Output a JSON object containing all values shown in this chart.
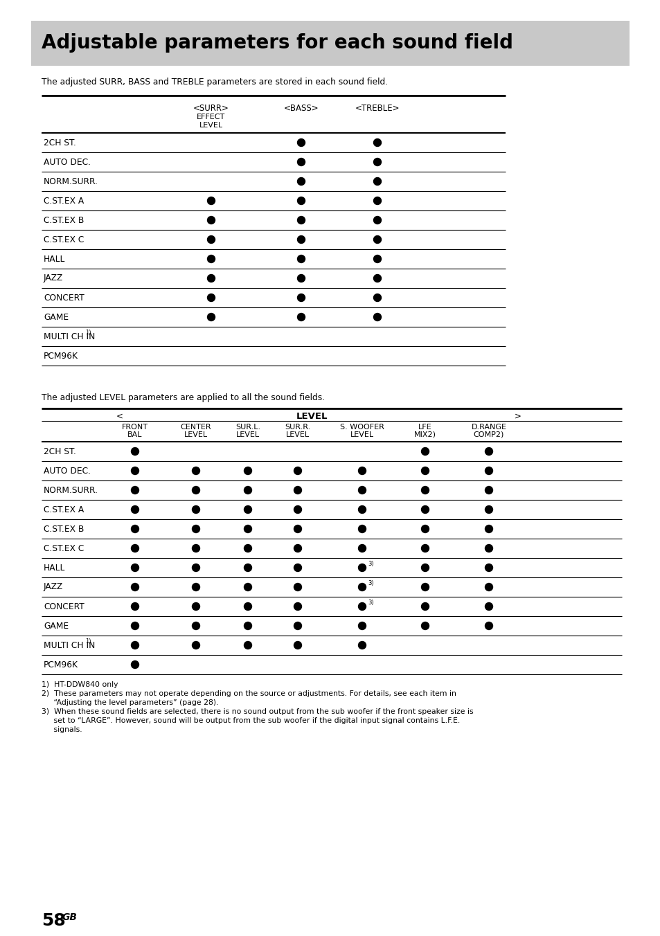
{
  "title": "Adjustable parameters for each sound field",
  "title_bg": "#c8c8c8",
  "page_bg": "#ffffff",
  "intro1": "The adjusted SURR, BASS and TREBLE parameters are stored in each sound field.",
  "intro2": "The adjusted LEVEL parameters are applied to all the sound fields.",
  "table1_col_headers": [
    "<SURR>",
    "<BASS>",
    "<TREBLE>"
  ],
  "table1_rows": [
    {
      "label": "2CH ST.",
      "surr": false,
      "bass": true,
      "treble": true
    },
    {
      "label": "AUTO DEC.",
      "surr": false,
      "bass": true,
      "treble": true
    },
    {
      "label": "NORM.SURR.",
      "surr": false,
      "bass": true,
      "treble": true
    },
    {
      "label": "C.ST.EX A",
      "surr": true,
      "bass": true,
      "treble": true
    },
    {
      "label": "C.ST.EX B",
      "surr": true,
      "bass": true,
      "treble": true
    },
    {
      "label": "C.ST.EX C",
      "surr": true,
      "bass": true,
      "treble": true
    },
    {
      "label": "HALL",
      "surr": true,
      "bass": true,
      "treble": true
    },
    {
      "label": "JAZZ",
      "surr": true,
      "bass": true,
      "treble": true
    },
    {
      "label": "CONCERT",
      "surr": true,
      "bass": true,
      "treble": true
    },
    {
      "label": "GAME",
      "surr": true,
      "bass": true,
      "treble": true
    },
    {
      "label": "MULTI CH IN",
      "sup": "1)",
      "surr": false,
      "bass": false,
      "treble": false
    },
    {
      "label": "PCM96K",
      "sup": "",
      "surr": false,
      "bass": false,
      "treble": false
    }
  ],
  "table2_col_headers": [
    [
      "FRONT",
      "BAL"
    ],
    [
      "CENTER",
      "LEVEL"
    ],
    [
      "SUR.L.",
      "LEVEL"
    ],
    [
      "SUR.R.",
      "LEVEL"
    ],
    [
      "S. WOOFER",
      "LEVEL"
    ],
    [
      "LFE",
      "MIX"
    ],
    [
      "D.RANGE",
      "COMP"
    ]
  ],
  "table2_col_sups": [
    "",
    "",
    "",
    "",
    "",
    "2)",
    "2)"
  ],
  "table2_rows": [
    {
      "label": "2CH ST.",
      "sup": "",
      "cols": [
        true,
        false,
        false,
        false,
        false,
        true,
        true
      ]
    },
    {
      "label": "AUTO DEC.",
      "sup": "",
      "cols": [
        true,
        true,
        true,
        true,
        true,
        true,
        true
      ]
    },
    {
      "label": "NORM.SURR.",
      "sup": "",
      "cols": [
        true,
        true,
        true,
        true,
        true,
        true,
        true
      ]
    },
    {
      "label": "C.ST.EX A",
      "sup": "",
      "cols": [
        true,
        true,
        true,
        true,
        true,
        true,
        true
      ]
    },
    {
      "label": "C.ST.EX B",
      "sup": "",
      "cols": [
        true,
        true,
        true,
        true,
        true,
        true,
        true
      ]
    },
    {
      "label": "C.ST.EX C",
      "sup": "",
      "cols": [
        true,
        true,
        true,
        true,
        true,
        true,
        true
      ]
    },
    {
      "label": "HALL",
      "sup": "",
      "cols": [
        true,
        true,
        true,
        true,
        "3)",
        true,
        true
      ]
    },
    {
      "label": "JAZZ",
      "sup": "",
      "cols": [
        true,
        true,
        true,
        true,
        "3)",
        true,
        true
      ]
    },
    {
      "label": "CONCERT",
      "sup": "",
      "cols": [
        true,
        true,
        true,
        true,
        "3)",
        true,
        true
      ]
    },
    {
      "label": "GAME",
      "sup": "",
      "cols": [
        true,
        true,
        true,
        true,
        true,
        true,
        true
      ]
    },
    {
      "label": "MULTI CH IN",
      "sup": "1)",
      "cols": [
        true,
        true,
        true,
        true,
        true,
        false,
        false
      ]
    },
    {
      "label": "PCM96K",
      "sup": "",
      "cols": [
        true,
        false,
        false,
        false,
        false,
        false,
        false
      ]
    }
  ],
  "footnote1": "1)  HT-DDW840 only",
  "footnote2a": "2)  These parameters may not operate depending on the source or adjustments. For details, see each item in",
  "footnote2b": "     “Adjusting the level parameters” (page 28).",
  "footnote3a": "3)  When these sound fields are selected, there is no sound output from the sub woofer if the front speaker size is",
  "footnote3b": "     set to “LARGE”. However, sound will be output from the sub woofer if the digital input signal contains L.F.E.",
  "footnote3c": "     signals.",
  "page_num": "58"
}
